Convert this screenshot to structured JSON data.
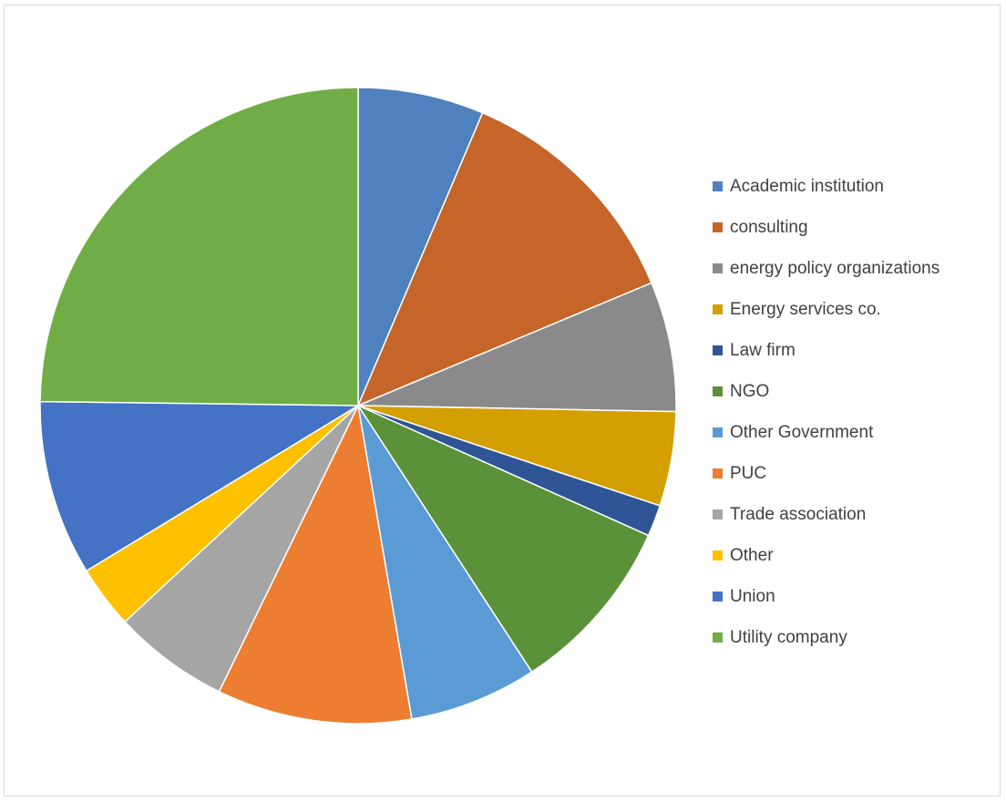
{
  "chart_data": {
    "type": "pie",
    "title": "",
    "categories": [
      "Academic institution",
      "consulting",
      "energy policy organizations",
      "Energy services co.",
      "Law firm",
      "NGO",
      "Other Government",
      "PUC",
      "Trade association",
      "Other",
      "Union",
      "Utility company"
    ],
    "values": [
      6.4,
      12.3,
      6.6,
      4.8,
      1.6,
      9.1,
      6.5,
      9.9,
      5.9,
      3.2,
      8.9,
      24.8
    ],
    "colors": [
      "#4E81BD",
      "#C5652A",
      "#8A8A8A",
      "#D49F00",
      "#2F5597",
      "#5B9138",
      "#5B9BD5",
      "#ED7D31",
      "#A5A5A5",
      "#FFC000",
      "#4472C4",
      "#70AD47"
    ],
    "start_angle_deg": 0,
    "direction": "clockwise",
    "legend_position": "right"
  }
}
